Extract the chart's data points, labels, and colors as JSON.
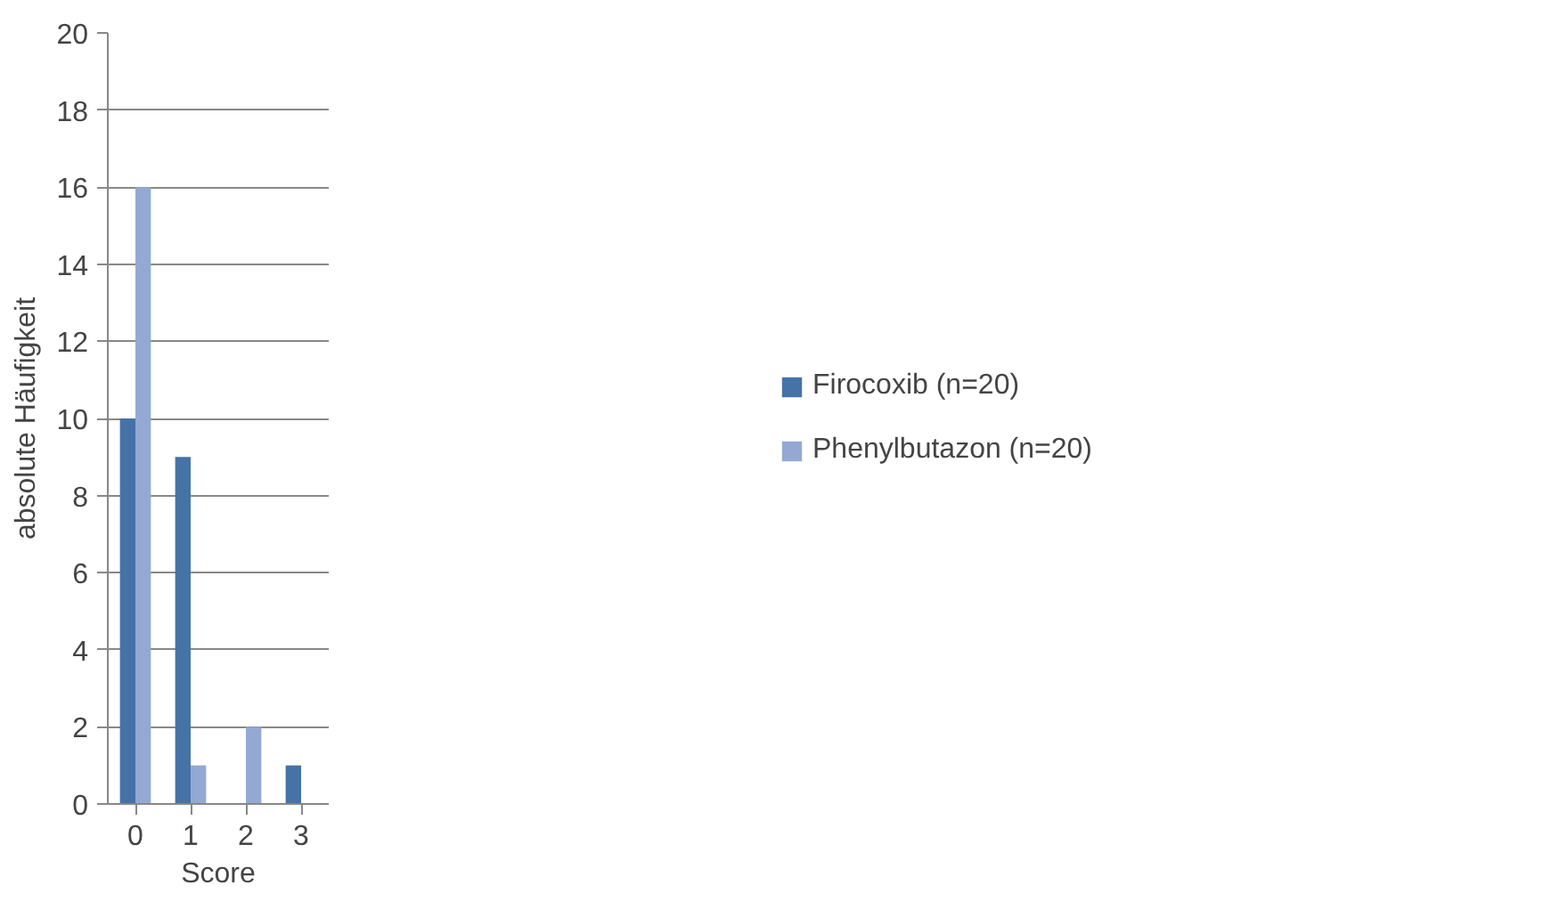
{
  "chart_data": {
    "type": "bar",
    "xlabel": "Score",
    "ylabel": "absolute Häufigkeit",
    "categories": [
      "0",
      "1",
      "2",
      "3"
    ],
    "series": [
      {
        "name": "Firocoxib (n=20)",
        "color": "#4572a7",
        "values": [
          10,
          9,
          0,
          1
        ]
      },
      {
        "name": "Phenylbutazon (n=20)",
        "color": "#93a9d3",
        "values": [
          16,
          1,
          2,
          0
        ]
      }
    ],
    "ylim": [
      0,
      20
    ],
    "yticks": [
      0,
      2,
      4,
      6,
      8,
      10,
      12,
      14,
      16,
      18,
      20
    ],
    "grid": "y",
    "legend": "right"
  }
}
